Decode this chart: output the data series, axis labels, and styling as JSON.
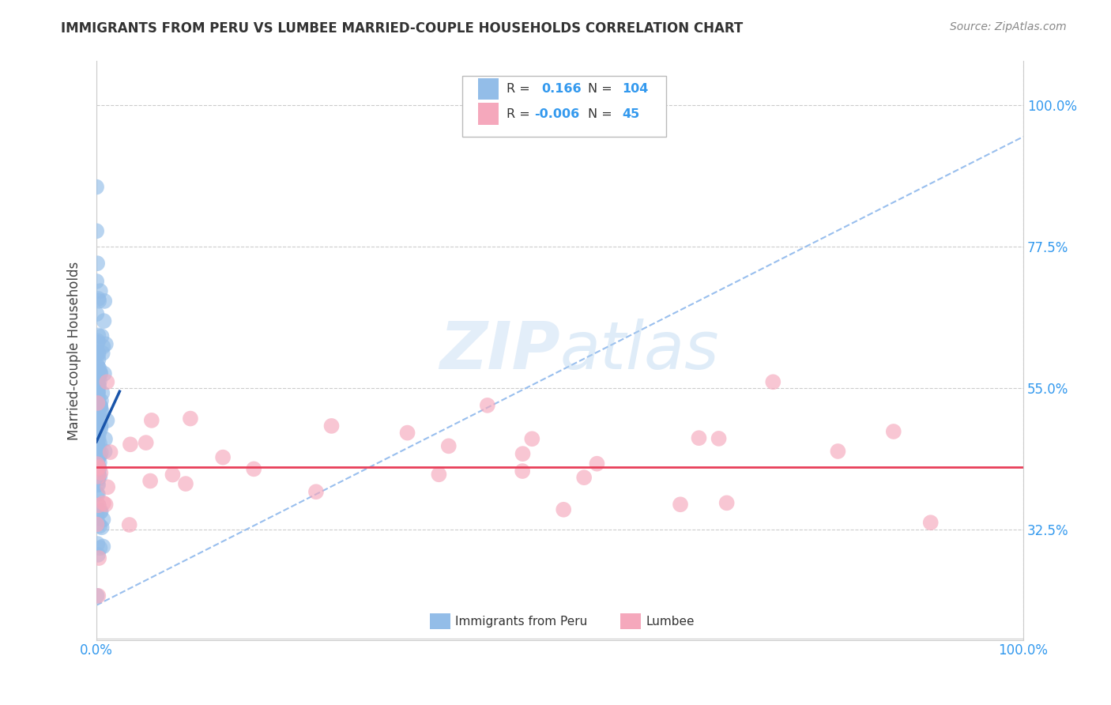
{
  "title": "IMMIGRANTS FROM PERU VS LUMBEE MARRIED-COUPLE HOUSEHOLDS CORRELATION CHART",
  "source": "Source: ZipAtlas.com",
  "ylabel": "Married-couple Households",
  "xlim": [
    0,
    1.0
  ],
  "ylim": [
    0.15,
    1.07
  ],
  "xtick_positions": [
    0.0,
    0.25,
    0.5,
    0.75,
    1.0
  ],
  "xticklabels": [
    "0.0%",
    "",
    "",
    "",
    "100.0%"
  ],
  "ytick_positions": [
    0.325,
    0.55,
    0.775,
    1.0
  ],
  "yticklabels": [
    "32.5%",
    "55.0%",
    "77.5%",
    "100.0%"
  ],
  "blue_R": 0.166,
  "blue_N": 104,
  "pink_R": -0.006,
  "pink_N": 45,
  "blue_color": "#93bde8",
  "pink_color": "#f5a8bc",
  "blue_line_color": "#1a55aa",
  "pink_line_color": "#e8405a",
  "dashed_line_color": "#99bfee",
  "grid_color": "#cccccc",
  "tick_color": "#3399ee",
  "blue_line_x0": 0.0,
  "blue_line_y0": 0.465,
  "blue_line_x1": 0.025,
  "blue_line_y1": 0.545,
  "pink_line_y": 0.425,
  "dashed_line_x0": 0.0,
  "dashed_line_y0": 0.205,
  "dashed_line_x1": 1.0,
  "dashed_line_y1": 0.95
}
